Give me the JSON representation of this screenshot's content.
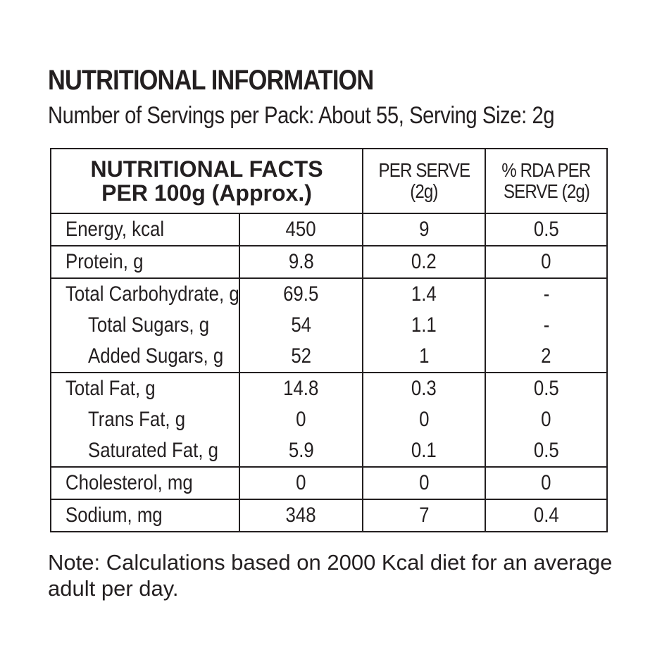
{
  "title": "NUTRITIONAL INFORMATION",
  "subtitle": "Number of Servings per Pack: About 55, Serving Size: 2g",
  "table": {
    "headers": {
      "facts_line1": "NUTRITIONAL FACTS",
      "facts_line2": "PER 100g (Approx.)",
      "per_serve_line1": "PER SERVE",
      "per_serve_line2": "(2g)",
      "rda_line1": "% RDA PER",
      "rda_line2": "SERVE (2g)"
    },
    "rows": [
      {
        "name": "Energy, kcal",
        "per100": "450",
        "serve": "9",
        "rda": "0.5"
      },
      {
        "name": "Protein, g",
        "per100": "9.8",
        "serve": "0.2",
        "rda": "0"
      },
      {
        "name": "Total Carbohydrate, g",
        "per100": "69.5",
        "serve": "1.4",
        "rda": "-"
      },
      {
        "name": "Total Sugars, g",
        "per100": "54",
        "serve": "1.1",
        "rda": "-"
      },
      {
        "name": "Added Sugars, g",
        "per100": "52",
        "serve": "1",
        "rda": "2"
      },
      {
        "name": "Total Fat, g",
        "per100": "14.8",
        "serve": "0.3",
        "rda": "0.5"
      },
      {
        "name": "Trans Fat, g",
        "per100": "0",
        "serve": "0",
        "rda": "0"
      },
      {
        "name": "Saturated Fat, g",
        "per100": "5.9",
        "serve": "0.1",
        "rda": "0.5"
      },
      {
        "name": "Cholesterol, mg",
        "per100": "0",
        "serve": "0",
        "rda": "0"
      },
      {
        "name": "Sodium, mg",
        "per100": "348",
        "serve": "7",
        "rda": "0.4"
      }
    ]
  },
  "note": "Note: Calculations based on 2000 Kcal diet for an average adult per day."
}
